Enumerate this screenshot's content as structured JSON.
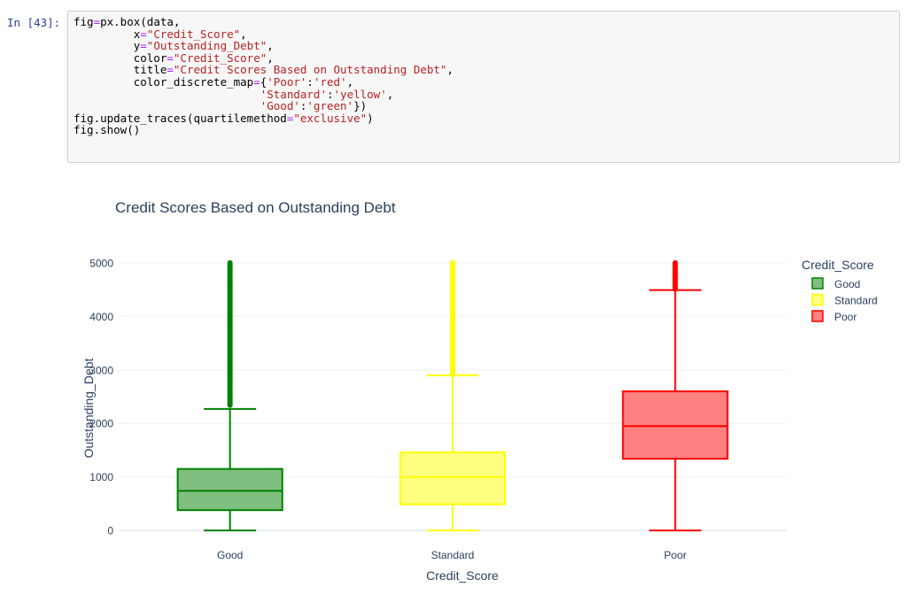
{
  "cell": {
    "prompt": "In [43]:",
    "code_lines": [
      [
        {
          "t": "fig",
          "c": "p"
        },
        {
          "t": "=",
          "c": "o"
        },
        {
          "t": "px.box(data,",
          "c": "p"
        }
      ],
      [
        {
          "t": "         x",
          "c": "p"
        },
        {
          "t": "=",
          "c": "o"
        },
        {
          "t": "\"Credit_Score\"",
          "c": "s"
        },
        {
          "t": ",",
          "c": "p"
        }
      ],
      [
        {
          "t": "         y",
          "c": "p"
        },
        {
          "t": "=",
          "c": "o"
        },
        {
          "t": "\"Outstanding_Debt\"",
          "c": "s"
        },
        {
          "t": ",",
          "c": "p"
        }
      ],
      [
        {
          "t": "         color",
          "c": "p"
        },
        {
          "t": "=",
          "c": "o"
        },
        {
          "t": "\"Credit_Score\"",
          "c": "s"
        },
        {
          "t": ",",
          "c": "p"
        }
      ],
      [
        {
          "t": "         title",
          "c": "p"
        },
        {
          "t": "=",
          "c": "o"
        },
        {
          "t": "\"Credit Scores Based on Outstanding Debt\"",
          "c": "s"
        },
        {
          "t": ",",
          "c": "p"
        }
      ],
      [
        {
          "t": "         color_discrete_map",
          "c": "p"
        },
        {
          "t": "=",
          "c": "o"
        },
        {
          "t": "{",
          "c": "p"
        },
        {
          "t": "'Poor'",
          "c": "s"
        },
        {
          "t": ":",
          "c": "p"
        },
        {
          "t": "'red'",
          "c": "s"
        },
        {
          "t": ",",
          "c": "p"
        }
      ],
      [
        {
          "t": "                            ",
          "c": "p"
        },
        {
          "t": "'Standard'",
          "c": "s"
        },
        {
          "t": ":",
          "c": "p"
        },
        {
          "t": "'yellow'",
          "c": "s"
        },
        {
          "t": ",",
          "c": "p"
        }
      ],
      [
        {
          "t": "                            ",
          "c": "p"
        },
        {
          "t": "'Good'",
          "c": "s"
        },
        {
          "t": ":",
          "c": "p"
        },
        {
          "t": "'green'",
          "c": "s"
        },
        {
          "t": "})",
          "c": "p"
        }
      ],
      [
        {
          "t": "fig.update_traces(quartilemethod",
          "c": "p"
        },
        {
          "t": "=",
          "c": "o"
        },
        {
          "t": "\"exclusive\"",
          "c": "s"
        },
        {
          "t": ")",
          "c": "p"
        }
      ],
      [
        {
          "t": "fig.show()",
          "c": "p"
        }
      ]
    ]
  },
  "chart_data": {
    "type": "box",
    "title": "Credit Scores Based on Outstanding Debt",
    "xlabel": "Credit_Score",
    "ylabel": "Outstanding_Debt",
    "ylim": [
      -80,
      5080
    ],
    "yticks": [
      0,
      1000,
      2000,
      3000,
      4000,
      5000
    ],
    "categories": [
      "Good",
      "Standard",
      "Poor"
    ],
    "grid": true,
    "legend": {
      "title": "Credit_Score",
      "placement": "right",
      "entries": [
        "Good",
        "Standard",
        "Poor"
      ]
    },
    "series": [
      {
        "name": "Good",
        "color": "#008000",
        "fill": "#7fbf7f",
        "min": 0,
        "q1": 380,
        "median": 740,
        "q3": 1150,
        "upper_fence": 2270,
        "outliers_range": [
          2340,
          5000
        ]
      },
      {
        "name": "Standard",
        "color": "#ffff00",
        "fill": "#ffff80",
        "min": 0,
        "q1": 490,
        "median": 1000,
        "q3": 1460,
        "upper_fence": 2900,
        "outliers_range": [
          2920,
          5000
        ]
      },
      {
        "name": "Poor",
        "color": "#ff0000",
        "fill": "#ff8080",
        "min": 0,
        "q1": 1340,
        "median": 1950,
        "q3": 2600,
        "upper_fence": 4490,
        "outliers_range": [
          4510,
          5000
        ]
      }
    ]
  },
  "colors": {
    "axis_text": "#2a3f5f",
    "grid": "#ebf0f8",
    "prompt": "#303f9f",
    "string": "#ba2121",
    "operator": "#aa22ff"
  }
}
